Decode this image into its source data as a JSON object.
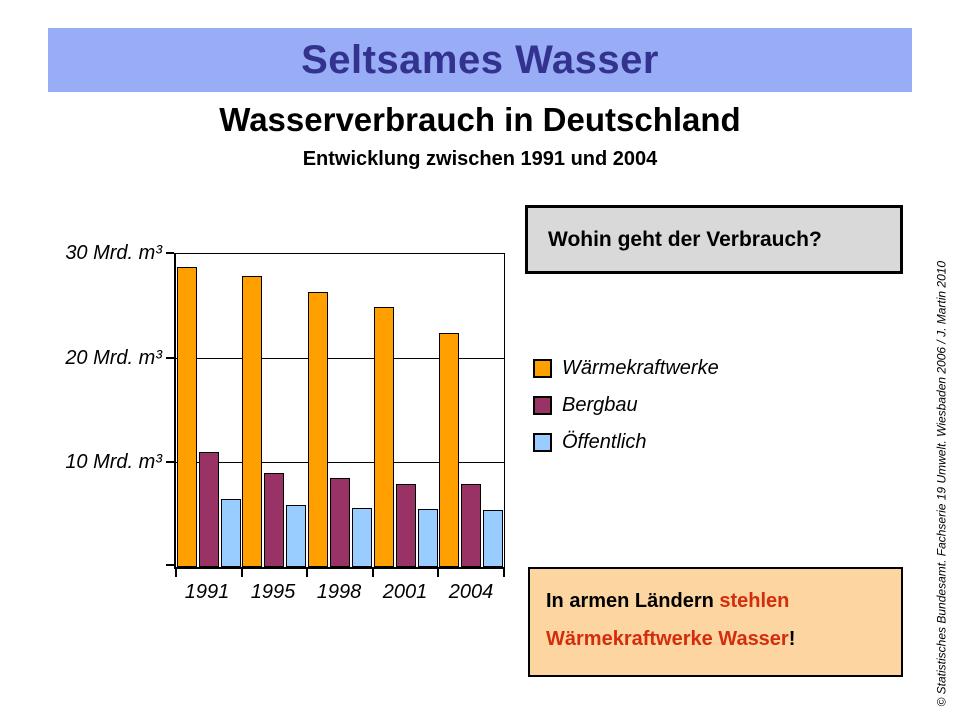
{
  "banner": {
    "title": "Seltsames Wasser"
  },
  "title": "Wasserverbrauch in Deutschland",
  "subtitle": "Entwicklung zwischen 1991 und 2004",
  "question_box": {
    "text": "Wohin geht der Verbrauch?"
  },
  "message_box": {
    "black_1": "In armen Ländern ",
    "red": "stehlen Wärmekraftwerke Wasser",
    "black_2": "!"
  },
  "copyright": "© Statistisches Bundesamt. Fachserie 19 Umwelt. Wiesbaden 2006 / J. Martin 2010",
  "colors": {
    "banner_bg": "#99ADF7",
    "banner_text": "#33338F",
    "question_box_bg": "#D9D9D9",
    "message_box_bg": "#FCD5A0",
    "highlight_red": "#D42D0E"
  },
  "chart_data": {
    "type": "bar",
    "title": "Wasserverbrauch in Deutschland",
    "subtitle": "Entwicklung zwischen 1991 und 2004",
    "categories": [
      "1991",
      "1995",
      "1998",
      "2001",
      "2004"
    ],
    "series": [
      {
        "key": "waermekraftwerke",
        "name": "Wärmekraftwerke",
        "color": "#FFA000",
        "values": [
          28.7,
          27.8,
          26.3,
          24.8,
          22.4
        ]
      },
      {
        "key": "bergbau",
        "name": "Bergbau",
        "color": "#993366",
        "values": [
          11.0,
          9.0,
          8.5,
          7.9,
          7.9
        ]
      },
      {
        "key": "oeffentlich",
        "name": "Öffentlich",
        "color": "#99CCFF",
        "values": [
          6.5,
          5.9,
          5.6,
          5.5,
          5.4
        ]
      }
    ],
    "unit": "Mrd. m³",
    "ylim": [
      0,
      30
    ],
    "yticks": [
      {
        "value": 30,
        "label": "30 Mrd. m³"
      },
      {
        "value": 20,
        "label": "20 Mrd. m³"
      },
      {
        "value": 10,
        "label": "10 Mrd. m³"
      }
    ],
    "grid": true,
    "legend_position": "right"
  }
}
